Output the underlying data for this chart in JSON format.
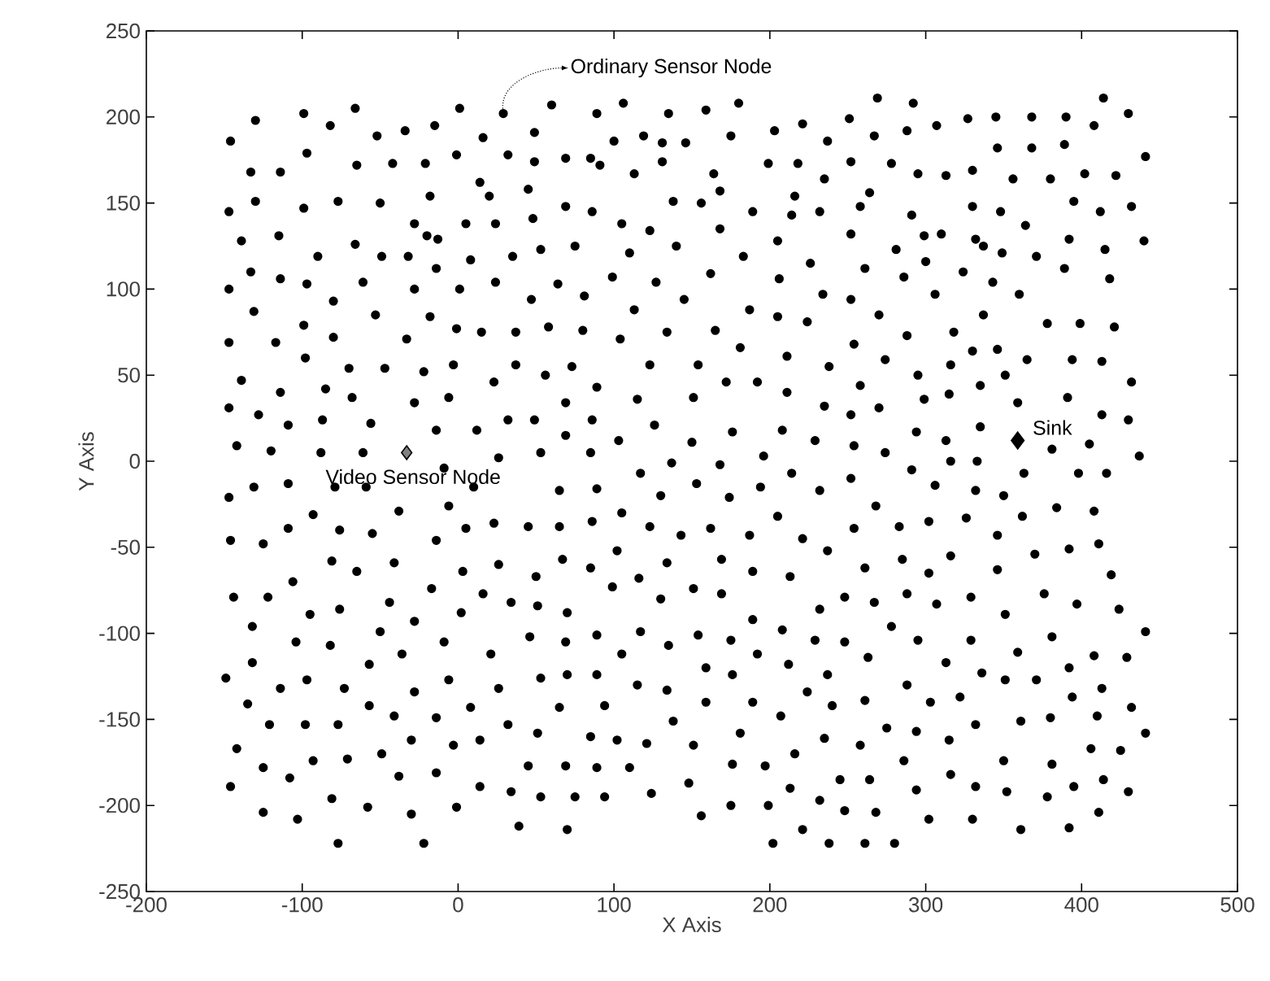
{
  "chart_data": {
    "type": "scatter",
    "xlabel": "X Axis",
    "ylabel": "Y Axis",
    "xlim": [
      -200,
      500
    ],
    "ylim": [
      -250,
      250
    ],
    "xticks": [
      -200,
      -100,
      0,
      100,
      200,
      300,
      400,
      500
    ],
    "yticks": [
      -250,
      -200,
      -150,
      -100,
      -50,
      0,
      50,
      100,
      150,
      200,
      250
    ],
    "series": [
      {
        "color": "#000000",
        "marker": "circle",
        "x": [
          -146,
          -130,
          -99,
          -82,
          -66,
          -52,
          -34,
          -15,
          1,
          -133,
          -114,
          -97,
          -65,
          -42,
          -21,
          -1,
          -147,
          -130,
          -99,
          -77,
          -50,
          -18,
          -28,
          5,
          14,
          -139,
          -115,
          -90,
          -66,
          -49,
          -32,
          -20,
          -13,
          8,
          -133,
          -114,
          -97,
          -147,
          -61,
          -28,
          -14,
          1,
          -131,
          -80,
          -53,
          -18,
          -1,
          15,
          -147,
          -117,
          -99,
          -80,
          -33,
          -139,
          -98,
          -70,
          -47,
          -22,
          -3,
          -147,
          -114,
          -85,
          -68,
          -28,
          -6,
          -128,
          -109,
          -87,
          -56,
          -14,
          12,
          -142,
          -120,
          -88,
          -61,
          -9,
          29,
          60,
          89,
          106,
          135,
          159,
          180,
          16,
          49,
          100,
          119,
          131,
          146,
          175,
          203,
          221,
          237,
          251,
          32,
          49,
          69,
          85,
          91,
          131,
          113,
          164,
          199,
          218,
          252,
          235,
          20,
          45,
          168,
          216,
          264,
          69,
          86,
          138,
          156,
          189,
          214,
          232,
          258,
          24,
          48,
          105,
          123,
          168,
          205,
          252,
          35,
          53,
          75,
          110,
          140,
          183,
          226,
          261,
          24,
          64,
          99,
          127,
          162,
          206,
          47,
          81,
          113,
          145,
          187,
          205,
          224,
          234,
          252,
          37,
          58,
          80,
          104,
          134,
          165,
          181,
          211,
          254,
          37,
          56,
          73,
          123,
          154,
          23,
          89,
          115,
          151,
          172,
          192,
          211,
          238,
          258,
          69,
          235,
          32,
          49,
          86,
          69,
          126,
          176,
          208,
          252,
          103,
          150,
          229,
          254,
          53,
          85,
          26,
          137,
          196,
          168,
          117,
          214,
          252,
          269,
          292,
          414,
          327,
          345,
          368,
          390,
          430,
          267,
          288,
          307,
          408,
          346,
          368,
          389,
          441,
          278,
          295,
          313,
          330,
          356,
          380,
          402,
          422,
          330,
          348,
          395,
          412,
          432,
          291,
          364,
          299,
          310,
          332,
          337,
          349,
          371,
          392,
          415,
          440,
          281,
          300,
          286,
          324,
          343,
          389,
          418,
          306,
          360,
          270,
          337,
          378,
          399,
          421,
          288,
          318,
          330,
          346,
          274,
          316,
          365,
          394,
          413,
          295,
          351,
          299,
          315,
          335,
          359,
          391,
          432,
          270,
          335,
          413,
          430,
          294,
          313,
          381,
          405,
          437,
          316,
          333,
          274,
          291,
          363,
          398,
          416,
          306,
          -131,
          -147,
          -109,
          -79,
          -59,
          10,
          -93,
          -38,
          -6,
          -146,
          -125,
          -109,
          -76,
          -55,
          -14,
          5,
          -81,
          -65,
          -41,
          3,
          -144,
          -122,
          -106,
          -95,
          -76,
          -44,
          -17,
          2,
          16,
          -132,
          -104,
          -82,
          -50,
          -28,
          -9,
          -132,
          -57,
          -36,
          -149,
          -97,
          -114,
          -73,
          -28,
          -6,
          -135,
          -57,
          -41,
          8,
          -121,
          -98,
          -77,
          -14,
          14,
          -142,
          -49,
          -30,
          -3,
          -93,
          -71,
          -125,
          -108,
          -38,
          -14,
          14,
          -146,
          -81,
          -58,
          -125,
          -103,
          -30,
          -1,
          -77,
          -22,
          65,
          89,
          130,
          153,
          174,
          194,
          232,
          23,
          45,
          65,
          86,
          105,
          123,
          143,
          162,
          187,
          205,
          221,
          254,
          26,
          50,
          67,
          85,
          102,
          116,
          134,
          169,
          189,
          213,
          237,
          261,
          34,
          51,
          70,
          99,
          130,
          151,
          169,
          189,
          232,
          248,
          46,
          69,
          89,
          117,
          135,
          154,
          175,
          192,
          208,
          229,
          248,
          21,
          26,
          53,
          70,
          89,
          105,
          115,
          134,
          159,
          176,
          212,
          237,
          263,
          32,
          51,
          65,
          94,
          138,
          159,
          189,
          207,
          224,
          240,
          261,
          85,
          102,
          121,
          151,
          181,
          216,
          235,
          258,
          45,
          69,
          89,
          110,
          176,
          197,
          245,
          264,
          34,
          53,
          75,
          94,
          124,
          148,
          213,
          175,
          199,
          232,
          248,
          156,
          39,
          70,
          221,
          202,
          238,
          261,
          332,
          350,
          268,
          384,
          408,
          283,
          302,
          326,
          362,
          346,
          411,
          392,
          370,
          285,
          302,
          316,
          346,
          419,
          267,
          288,
          307,
          329,
          351,
          376,
          397,
          424,
          278,
          295,
          329,
          381,
          441,
          313,
          336,
          359,
          351,
          371,
          392,
          408,
          429,
          413,
          288,
          303,
          322,
          394,
          432,
          275,
          294,
          332,
          361,
          380,
          410,
          315,
          441,
          286,
          350,
          381,
          406,
          425,
          316,
          294,
          332,
          352,
          378,
          395,
          414,
          430,
          268,
          302,
          330,
          411,
          361,
          392,
          280
        ],
        "values": [
          186,
          198,
          202,
          195,
          205,
          189,
          192,
          195,
          205,
          168,
          168,
          179,
          172,
          173,
          173,
          178,
          145,
          151,
          147,
          151,
          150,
          154,
          138,
          138,
          162,
          128,
          131,
          119,
          126,
          119,
          119,
          131,
          129,
          117,
          110,
          106,
          103,
          100,
          104,
          100,
          112,
          100,
          87,
          93,
          85,
          84,
          77,
          75,
          69,
          69,
          79,
          72,
          71,
          47,
          60,
          54,
          54,
          52,
          56,
          31,
          40,
          42,
          37,
          34,
          37,
          27,
          21,
          24,
          22,
          18,
          18,
          9,
          6,
          5,
          5,
          -4,
          202,
          207,
          202,
          208,
          202,
          204,
          208,
          188,
          191,
          186,
          189,
          185,
          185,
          189,
          192,
          196,
          186,
          199,
          178,
          174,
          176,
          176,
          172,
          174,
          167,
          167,
          173,
          173,
          174,
          164,
          154,
          158,
          157,
          154,
          156,
          148,
          145,
          151,
          150,
          145,
          143,
          145,
          148,
          138,
          141,
          138,
          134,
          135,
          128,
          132,
          119,
          123,
          125,
          121,
          125,
          119,
          115,
          112,
          104,
          103,
          107,
          104,
          109,
          106,
          94,
          96,
          88,
          94,
          88,
          84,
          81,
          97,
          94,
          75,
          78,
          76,
          71,
          75,
          76,
          66,
          61,
          68,
          56,
          50,
          55,
          56,
          56,
          46,
          43,
          36,
          37,
          46,
          46,
          40,
          55,
          44,
          34,
          32,
          24,
          24,
          24,
          15,
          21,
          17,
          18,
          27,
          12,
          11,
          12,
          9,
          5,
          5,
          2,
          -1,
          3,
          -2,
          -7,
          -7,
          -10,
          211,
          208,
          211,
          199,
          200,
          200,
          200,
          202,
          189,
          192,
          195,
          195,
          182,
          182,
          184,
          177,
          173,
          167,
          166,
          169,
          164,
          164,
          167,
          166,
          148,
          145,
          151,
          145,
          148,
          143,
          137,
          131,
          132,
          129,
          125,
          121,
          119,
          129,
          123,
          128,
          123,
          116,
          107,
          110,
          104,
          112,
          106,
          97,
          97,
          85,
          85,
          80,
          80,
          78,
          73,
          75,
          64,
          65,
          59,
          56,
          59,
          59,
          58,
          50,
          50,
          36,
          39,
          44,
          34,
          37,
          46,
          31,
          20,
          27,
          24,
          17,
          12,
          7,
          10,
          3,
          0,
          0,
          5,
          -5,
          -7,
          -7,
          -7,
          -14,
          -15,
          -21,
          -13,
          -15,
          -15,
          -15,
          -31,
          -29,
          -26,
          -46,
          -48,
          -39,
          -40,
          -42,
          -46,
          -39,
          -58,
          -64,
          -59,
          -64,
          -79,
          -79,
          -70,
          -89,
          -86,
          -82,
          -74,
          -88,
          -77,
          -96,
          -105,
          -107,
          -99,
          -93,
          -105,
          -117,
          -118,
          -112,
          -126,
          -127,
          -132,
          -132,
          -134,
          -127,
          -141,
          -142,
          -148,
          -143,
          -153,
          -153,
          -153,
          -149,
          -162,
          -167,
          -170,
          -162,
          -165,
          -174,
          -173,
          -178,
          -184,
          -183,
          -181,
          -189,
          -189,
          -196,
          -201,
          -204,
          -208,
          -205,
          -201,
          -222,
          -222,
          -17,
          -16,
          -20,
          -13,
          -21,
          -15,
          -17,
          -36,
          -38,
          -38,
          -35,
          -30,
          -38,
          -43,
          -39,
          -43,
          -32,
          -45,
          -39,
          -60,
          -67,
          -57,
          -62,
          -52,
          -68,
          -59,
          -57,
          -64,
          -67,
          -52,
          -62,
          -82,
          -84,
          -88,
          -73,
          -80,
          -74,
          -77,
          -92,
          -86,
          -79,
          -102,
          -105,
          -101,
          -99,
          -107,
          -101,
          -104,
          -112,
          -98,
          -104,
          -105,
          -112,
          -132,
          -126,
          -124,
          -124,
          -112,
          -130,
          -133,
          -120,
          -124,
          -118,
          -124,
          -114,
          -153,
          -158,
          -143,
          -142,
          -151,
          -140,
          -140,
          -148,
          -134,
          -142,
          -139,
          -160,
          -162,
          -164,
          -165,
          -158,
          -170,
          -161,
          -165,
          -177,
          -177,
          -178,
          -178,
          -176,
          -177,
          -185,
          -185,
          -192,
          -195,
          -195,
          -195,
          -193,
          -187,
          -190,
          -200,
          -200,
          -197,
          -203,
          -206,
          -212,
          -214,
          -214,
          -222,
          -222,
          -222,
          -17,
          -20,
          -26,
          -27,
          -29,
          -38,
          -35,
          -33,
          -32,
          -43,
          -48,
          -51,
          -54,
          -57,
          -65,
          -55,
          -63,
          -66,
          -82,
          -77,
          -83,
          -79,
          -89,
          -77,
          -83,
          -86,
          -96,
          -104,
          -104,
          -102,
          -99,
          -117,
          -123,
          -111,
          -127,
          -127,
          -120,
          -113,
          -114,
          -132,
          -130,
          -140,
          -137,
          -137,
          -143,
          -155,
          -157,
          -153,
          -151,
          -149,
          -148,
          -162,
          -158,
          -174,
          -174,
          -176,
          -167,
          -168,
          -182,
          -191,
          -189,
          -192,
          -195,
          -189,
          -185,
          -192,
          -204,
          -208,
          -208,
          -204,
          -214,
          -213,
          -222
        ]
      },
      {
        "color": "#808080",
        "marker": "diamond",
        "x": [
          -33
        ],
        "values": [
          5
        ]
      },
      {
        "color": "#000000",
        "marker": "diamond",
        "x": [
          359
        ],
        "values": [
          12
        ]
      }
    ],
    "annotations": [
      {
        "text": "Ordinary Sensor Node",
        "x": 29,
        "y": 202
      },
      {
        "text": "Video Sensor Node",
        "x": -33,
        "y": 5
      },
      {
        "text": "Sink",
        "x": 359,
        "y": 12
      }
    ]
  }
}
